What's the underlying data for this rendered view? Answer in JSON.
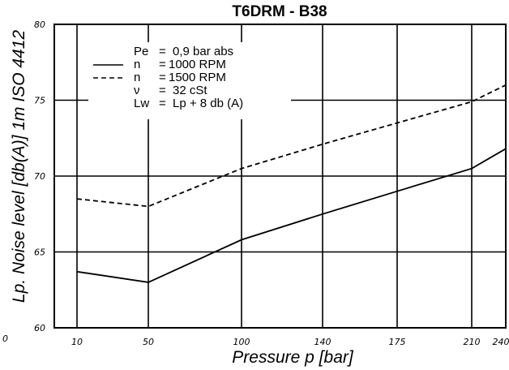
{
  "chart_data": {
    "type": "line",
    "title": "T6DRM - B38",
    "xlabel": "Pressure p [bar]",
    "ylabel": "Lp. Noise level [db(A)] 1m ISO 4412",
    "x_categories": [
      "10",
      "50",
      "100",
      "140",
      "175",
      "210",
      "240"
    ],
    "y_ticks": [
      "80",
      "75",
      "70",
      "65",
      "60"
    ],
    "ylim": [
      60,
      80
    ],
    "grid": true,
    "corner_label": "0",
    "series": [
      {
        "name": "n =1000 RPM",
        "style": "solid",
        "points": [
          [
            10,
            63.7
          ],
          [
            50,
            63.0
          ],
          [
            100,
            65.8
          ],
          [
            140,
            67.5
          ],
          [
            175,
            69.0
          ],
          [
            210,
            70.5
          ],
          [
            240,
            71.8
          ]
        ]
      },
      {
        "name": "n =1500 RPM",
        "style": "dashed",
        "points": [
          [
            10,
            68.5
          ],
          [
            50,
            68.0
          ],
          [
            100,
            70.5
          ],
          [
            140,
            72.1
          ],
          [
            175,
            73.5
          ],
          [
            210,
            74.9
          ],
          [
            240,
            76.0
          ]
        ]
      }
    ],
    "legend": {
      "placement": "top-left",
      "rows": [
        {
          "sym": "Pe",
          "eq": "=",
          "val": "0,9 bar abs",
          "line": "none"
        },
        {
          "sym": "n",
          "eq": "=",
          "val": "1000 RPM",
          "line": "solid"
        },
        {
          "sym": "n",
          "eq": "=",
          "val": "1500 RPM",
          "line": "dashed"
        },
        {
          "sym": "ν",
          "eq": "=",
          "val": "32 cSt",
          "line": "none"
        },
        {
          "sym": "Lw",
          "eq": "=",
          "val": "Lp + 8 db (A)",
          "line": "none"
        }
      ]
    },
    "colors": {
      "line": "#000000",
      "grid": "#000000",
      "background": "#ffffff"
    }
  }
}
